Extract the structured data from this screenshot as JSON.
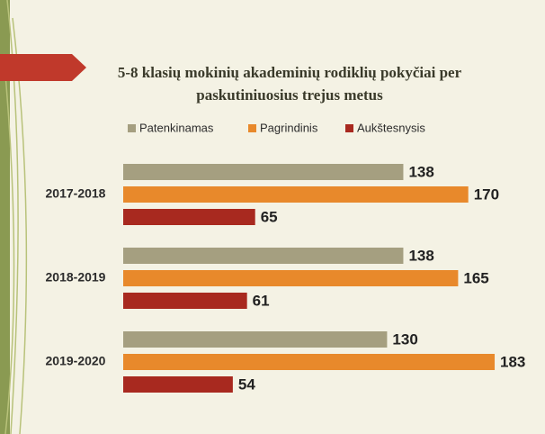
{
  "chart_data": {
    "type": "bar",
    "title_lines": [
      "5-8 klasių mokinių akademinių rodiklių pokyčiai per",
      "paskutiniuosius trejus metus"
    ],
    "categories": [
      "2017-2018",
      "2018-2019",
      "2019-2020"
    ],
    "series": [
      {
        "name": "Patenkinamas",
        "color": "#a59f80",
        "values": [
          138,
          138,
          130
        ]
      },
      {
        "name": "Pagrindinis",
        "color": "#e8892b",
        "values": [
          170,
          165,
          183
        ]
      },
      {
        "name": "Aukštesnysis",
        "color": "#a8291f",
        "values": [
          65,
          61,
          54
        ]
      }
    ]
  }
}
